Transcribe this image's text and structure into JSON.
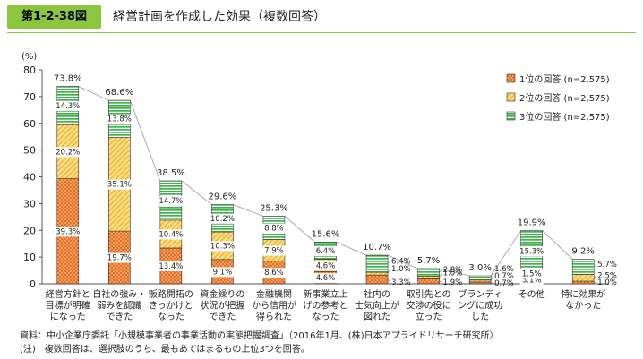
{
  "header": {
    "figure_number": "第1-2-38図",
    "title": "経営計画を作成した効果（複数回答）"
  },
  "footnotes": {
    "source": "資料：中小企業庁委託「小規模事業者の事業活動の実態把握調査」（2016年1月、(株)日本アプライドリサーチ研究所）",
    "note": "(注)　複数回答は、選択肢のうち、最もあてはまるもの上位3つを回答。"
  },
  "chart_data": {
    "type": "bar",
    "stacked": true,
    "y_unit": "(%)",
    "ylim": [
      0,
      80
    ],
    "yticks": [
      0,
      10,
      20,
      30,
      40,
      50,
      60,
      70,
      80
    ],
    "grid": false,
    "legend_position": "top-right",
    "categories": [
      [
        "経営方針と",
        "目標が明確",
        "になった"
      ],
      [
        "自社の強み・",
        "弱みを認識",
        "できた"
      ],
      [
        "販路開拓の",
        "きっかけと",
        "なった"
      ],
      [
        "資金繰りの",
        "状況が把握",
        "できた"
      ],
      [
        "金融機関",
        "から信用が",
        "得られた"
      ],
      [
        "新事業立上",
        "げの参考と",
        "なった"
      ],
      [
        "社内の",
        "士気向上が",
        "図れた"
      ],
      [
        "取引先との",
        "交渉の役に",
        "立った"
      ],
      [
        "ブランディ",
        "ングに成功",
        "した"
      ],
      [
        "その他"
      ],
      [
        "特に効果が",
        "なかった"
      ]
    ],
    "totals": [
      73.8,
      68.6,
      38.5,
      29.6,
      25.3,
      15.6,
      10.7,
      5.7,
      3.0,
      19.9,
      9.2
    ],
    "total_labels": [
      "73.8%",
      "68.6%",
      "38.5%",
      "29.6%",
      "25.3%",
      "15.6%",
      "10.7%",
      "5.7%",
      "3.0%",
      "19.9%",
      "9.2%"
    ],
    "series": [
      {
        "name": "1位の回答 (n=2,575)",
        "color": "#e8711f",
        "pattern": "dots",
        "values": [
          39.3,
          19.7,
          13.4,
          9.1,
          8.6,
          4.6,
          3.3,
          1.9,
          0.7,
          3.1,
          1.0
        ],
        "labels": [
          "39.3%",
          "19.7%",
          "13.4%",
          "9.1%",
          "8.6%",
          "4.6%",
          "3.3%",
          "1.9%",
          "0.7%",
          "3.1%",
          "1.0%"
        ]
      },
      {
        "name": "2位の回答 (n=2,575)",
        "color": "#f2c14e",
        "pattern": "diagonal",
        "values": [
          20.2,
          35.1,
          10.4,
          10.3,
          7.9,
          4.6,
          1.0,
          1.0,
          0.7,
          1.5,
          2.5
        ],
        "labels": [
          "20.2%",
          "35.1%",
          "10.4%",
          "10.3%",
          "7.9%",
          "4.6%",
          "1.0%",
          "1.0%",
          "0.7%",
          "1.5%",
          "2.5%"
        ]
      },
      {
        "name": "3位の回答 (n=2,575)",
        "color": "#3bb54a",
        "pattern": "horizontal",
        "values": [
          14.3,
          13.8,
          14.7,
          10.2,
          8.8,
          6.4,
          6.4,
          2.8,
          1.6,
          15.3,
          5.7
        ],
        "labels": [
          "14.3%",
          "13.8%",
          "14.7%",
          "10.2%",
          "8.8%",
          "6.4%",
          "6.4%",
          "2.8%",
          "1.6%",
          "15.3%",
          "5.7%"
        ]
      }
    ]
  }
}
